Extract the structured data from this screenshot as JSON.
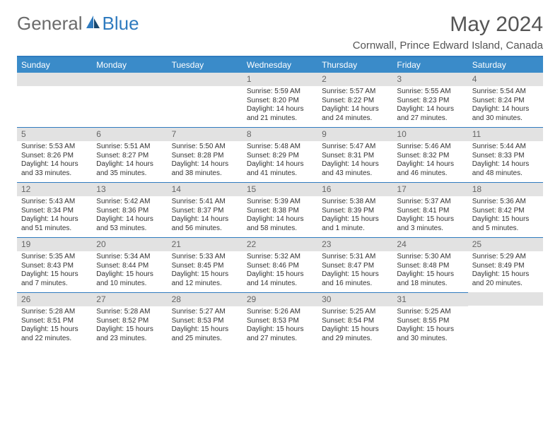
{
  "logo": {
    "general": "General",
    "blue": "Blue"
  },
  "title": "May 2024",
  "location": "Cornwall, Prince Edward Island, Canada",
  "colors": {
    "header_bg": "#3a8bc9",
    "header_text": "#ffffff",
    "border": "#2f7bbf",
    "daynum_bg": "#e2e2e2",
    "text": "#333333",
    "title_text": "#555555",
    "logo_gray": "#6b6b6b",
    "logo_blue": "#2f7bbf"
  },
  "weekdays": [
    "Sunday",
    "Monday",
    "Tuesday",
    "Wednesday",
    "Thursday",
    "Friday",
    "Saturday"
  ],
  "grid": [
    [
      {
        "n": "",
        "lines": []
      },
      {
        "n": "",
        "lines": []
      },
      {
        "n": "",
        "lines": []
      },
      {
        "n": "1",
        "lines": [
          "Sunrise: 5:59 AM",
          "Sunset: 8:20 PM",
          "Daylight: 14 hours",
          "and 21 minutes."
        ]
      },
      {
        "n": "2",
        "lines": [
          "Sunrise: 5:57 AM",
          "Sunset: 8:22 PM",
          "Daylight: 14 hours",
          "and 24 minutes."
        ]
      },
      {
        "n": "3",
        "lines": [
          "Sunrise: 5:55 AM",
          "Sunset: 8:23 PM",
          "Daylight: 14 hours",
          "and 27 minutes."
        ]
      },
      {
        "n": "4",
        "lines": [
          "Sunrise: 5:54 AM",
          "Sunset: 8:24 PM",
          "Daylight: 14 hours",
          "and 30 minutes."
        ]
      }
    ],
    [
      {
        "n": "5",
        "lines": [
          "Sunrise: 5:53 AM",
          "Sunset: 8:26 PM",
          "Daylight: 14 hours",
          "and 33 minutes."
        ]
      },
      {
        "n": "6",
        "lines": [
          "Sunrise: 5:51 AM",
          "Sunset: 8:27 PM",
          "Daylight: 14 hours",
          "and 35 minutes."
        ]
      },
      {
        "n": "7",
        "lines": [
          "Sunrise: 5:50 AM",
          "Sunset: 8:28 PM",
          "Daylight: 14 hours",
          "and 38 minutes."
        ]
      },
      {
        "n": "8",
        "lines": [
          "Sunrise: 5:48 AM",
          "Sunset: 8:29 PM",
          "Daylight: 14 hours",
          "and 41 minutes."
        ]
      },
      {
        "n": "9",
        "lines": [
          "Sunrise: 5:47 AM",
          "Sunset: 8:31 PM",
          "Daylight: 14 hours",
          "and 43 minutes."
        ]
      },
      {
        "n": "10",
        "lines": [
          "Sunrise: 5:46 AM",
          "Sunset: 8:32 PM",
          "Daylight: 14 hours",
          "and 46 minutes."
        ]
      },
      {
        "n": "11",
        "lines": [
          "Sunrise: 5:44 AM",
          "Sunset: 8:33 PM",
          "Daylight: 14 hours",
          "and 48 minutes."
        ]
      }
    ],
    [
      {
        "n": "12",
        "lines": [
          "Sunrise: 5:43 AM",
          "Sunset: 8:34 PM",
          "Daylight: 14 hours",
          "and 51 minutes."
        ]
      },
      {
        "n": "13",
        "lines": [
          "Sunrise: 5:42 AM",
          "Sunset: 8:36 PM",
          "Daylight: 14 hours",
          "and 53 minutes."
        ]
      },
      {
        "n": "14",
        "lines": [
          "Sunrise: 5:41 AM",
          "Sunset: 8:37 PM",
          "Daylight: 14 hours",
          "and 56 minutes."
        ]
      },
      {
        "n": "15",
        "lines": [
          "Sunrise: 5:39 AM",
          "Sunset: 8:38 PM",
          "Daylight: 14 hours",
          "and 58 minutes."
        ]
      },
      {
        "n": "16",
        "lines": [
          "Sunrise: 5:38 AM",
          "Sunset: 8:39 PM",
          "Daylight: 15 hours",
          "and 1 minute."
        ]
      },
      {
        "n": "17",
        "lines": [
          "Sunrise: 5:37 AM",
          "Sunset: 8:41 PM",
          "Daylight: 15 hours",
          "and 3 minutes."
        ]
      },
      {
        "n": "18",
        "lines": [
          "Sunrise: 5:36 AM",
          "Sunset: 8:42 PM",
          "Daylight: 15 hours",
          "and 5 minutes."
        ]
      }
    ],
    [
      {
        "n": "19",
        "lines": [
          "Sunrise: 5:35 AM",
          "Sunset: 8:43 PM",
          "Daylight: 15 hours",
          "and 7 minutes."
        ]
      },
      {
        "n": "20",
        "lines": [
          "Sunrise: 5:34 AM",
          "Sunset: 8:44 PM",
          "Daylight: 15 hours",
          "and 10 minutes."
        ]
      },
      {
        "n": "21",
        "lines": [
          "Sunrise: 5:33 AM",
          "Sunset: 8:45 PM",
          "Daylight: 15 hours",
          "and 12 minutes."
        ]
      },
      {
        "n": "22",
        "lines": [
          "Sunrise: 5:32 AM",
          "Sunset: 8:46 PM",
          "Daylight: 15 hours",
          "and 14 minutes."
        ]
      },
      {
        "n": "23",
        "lines": [
          "Sunrise: 5:31 AM",
          "Sunset: 8:47 PM",
          "Daylight: 15 hours",
          "and 16 minutes."
        ]
      },
      {
        "n": "24",
        "lines": [
          "Sunrise: 5:30 AM",
          "Sunset: 8:48 PM",
          "Daylight: 15 hours",
          "and 18 minutes."
        ]
      },
      {
        "n": "25",
        "lines": [
          "Sunrise: 5:29 AM",
          "Sunset: 8:49 PM",
          "Daylight: 15 hours",
          "and 20 minutes."
        ]
      }
    ],
    [
      {
        "n": "26",
        "lines": [
          "Sunrise: 5:28 AM",
          "Sunset: 8:51 PM",
          "Daylight: 15 hours",
          "and 22 minutes."
        ]
      },
      {
        "n": "27",
        "lines": [
          "Sunrise: 5:28 AM",
          "Sunset: 8:52 PM",
          "Daylight: 15 hours",
          "and 23 minutes."
        ]
      },
      {
        "n": "28",
        "lines": [
          "Sunrise: 5:27 AM",
          "Sunset: 8:53 PM",
          "Daylight: 15 hours",
          "and 25 minutes."
        ]
      },
      {
        "n": "29",
        "lines": [
          "Sunrise: 5:26 AM",
          "Sunset: 8:53 PM",
          "Daylight: 15 hours",
          "and 27 minutes."
        ]
      },
      {
        "n": "30",
        "lines": [
          "Sunrise: 5:25 AM",
          "Sunset: 8:54 PM",
          "Daylight: 15 hours",
          "and 29 minutes."
        ]
      },
      {
        "n": "31",
        "lines": [
          "Sunrise: 5:25 AM",
          "Sunset: 8:55 PM",
          "Daylight: 15 hours",
          "and 30 minutes."
        ]
      },
      {
        "n": "",
        "lines": []
      }
    ]
  ]
}
